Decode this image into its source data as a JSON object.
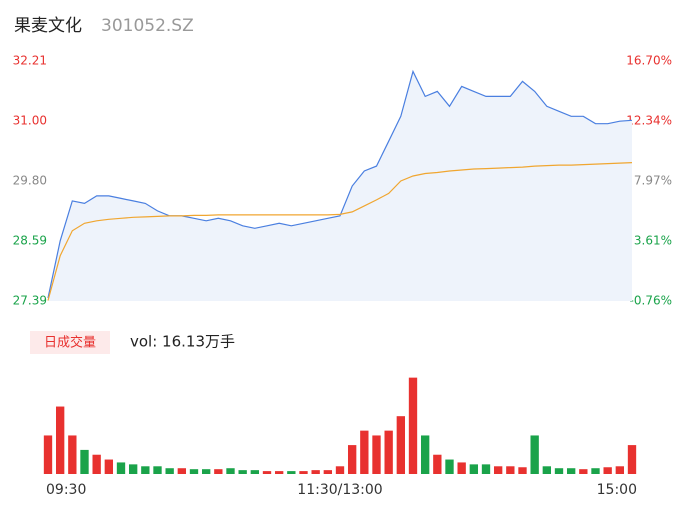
{
  "title": "果麦文化",
  "code": "301052.SZ",
  "chart_data": [
    {
      "type": "line",
      "x": [
        0,
        5,
        10,
        15,
        20,
        25,
        30,
        35,
        40,
        45,
        50,
        55,
        60,
        65,
        70,
        75,
        80,
        85,
        90,
        95,
        100,
        105,
        110,
        115,
        120,
        125,
        130,
        135,
        140,
        145,
        150,
        155,
        160,
        165,
        170,
        175,
        180,
        185,
        190,
        195,
        200,
        205,
        210,
        215,
        220,
        225,
        230,
        235,
        240
      ],
      "xlim": [
        0,
        240
      ],
      "xticks": [
        {
          "value": 0,
          "label": "09:30"
        },
        {
          "value": 120,
          "label": "11:30/13:00"
        },
        {
          "value": 240,
          "label": "15:00"
        }
      ],
      "ylim": [
        27.39,
        32.21
      ],
      "yticks": [
        27.39,
        28.59,
        {
          "value": 29.8,
          "label": "29.80"
        },
        {
          "value": 31,
          "label": "31.00"
        },
        32.21
      ],
      "ytick_colors": [
        "#1aa34a",
        "#1aa34a",
        "#888888",
        "#e8312f",
        "#e8312f"
      ],
      "y2lim": [
        -0.76,
        16.7
      ],
      "y2ticks": [
        {
          "value": -0.76,
          "label": "-0.76%"
        },
        {
          "value": 3.61,
          "label": "3.61%"
        },
        {
          "value": 7.97,
          "label": "7.97%"
        },
        {
          "value": 12.34,
          "label": "12.34%"
        },
        {
          "value": 16.7,
          "label": "16.70%"
        }
      ],
      "series": [
        {
          "name": "price",
          "color": "#4a7fe0",
          "fill": "#eef3fb",
          "values": [
            27.45,
            28.6,
            29.4,
            29.35,
            29.5,
            29.5,
            29.45,
            29.4,
            29.35,
            29.2,
            29.1,
            29.1,
            29.05,
            29.0,
            29.05,
            29.0,
            28.9,
            28.85,
            28.9,
            28.95,
            28.9,
            28.95,
            29.0,
            29.05,
            29.1,
            29.7,
            30.0,
            30.1,
            30.6,
            31.1,
            32.0,
            31.5,
            31.6,
            31.3,
            31.7,
            31.6,
            31.5,
            31.5,
            31.5,
            31.8,
            31.6,
            31.3,
            31.2,
            31.1,
            31.1,
            30.95,
            30.95,
            31.0,
            31.02
          ]
        },
        {
          "name": "average",
          "color": "#f0a630",
          "values": [
            27.4,
            28.3,
            28.8,
            28.95,
            29.0,
            29.03,
            29.05,
            29.07,
            29.08,
            29.09,
            29.1,
            29.1,
            29.11,
            29.11,
            29.12,
            29.12,
            29.12,
            29.12,
            29.12,
            29.12,
            29.12,
            29.12,
            29.12,
            29.12,
            29.13,
            29.18,
            29.3,
            29.42,
            29.55,
            29.8,
            29.9,
            29.95,
            29.97,
            30.0,
            30.02,
            30.04,
            30.05,
            30.06,
            30.07,
            30.08,
            30.1,
            30.11,
            30.12,
            30.12,
            30.13,
            30.14,
            30.15,
            30.16,
            30.17
          ]
        }
      ]
    },
    {
      "type": "bar",
      "legend": "日成交量",
      "volume_label": "vol: 16.13万手",
      "up_color": "#e8312f",
      "down_color": "#1aa34a",
      "ylim": [
        0,
        110
      ],
      "values": [
        40,
        70,
        40,
        25,
        20,
        15,
        12,
        10,
        8,
        8,
        6,
        6,
        5,
        5,
        5,
        6,
        4,
        4,
        3,
        3,
        3,
        3,
        4,
        4,
        8,
        30,
        45,
        40,
        45,
        60,
        100,
        40,
        20,
        15,
        12,
        10,
        10,
        8,
        8,
        7,
        40,
        8,
        6,
        6,
        5,
        6,
        7,
        8,
        30
      ]
    }
  ]
}
